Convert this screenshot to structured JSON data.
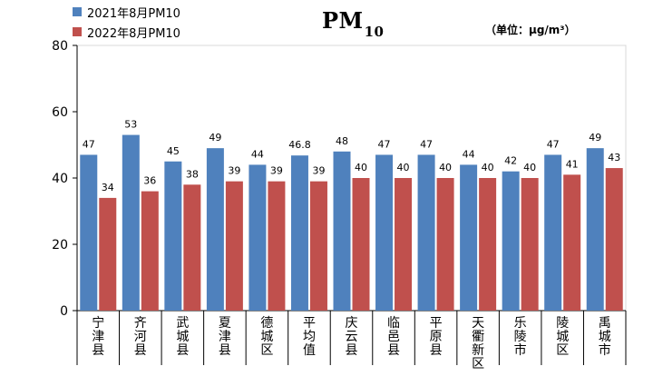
{
  "colors": {
    "series2021": "#4f81bd",
    "series2022": "#c0504d"
  },
  "legend": {
    "s2021": "2021年8月PM10",
    "s2022": "2022年8月PM10"
  },
  "title": {
    "main": "PM",
    "sub": "10"
  },
  "unit": "（单位：μg/m³）",
  "chart_data": {
    "type": "bar",
    "title": "PM10",
    "ylim": [
      0,
      80
    ],
    "yticks": [
      0,
      20,
      40,
      60,
      80
    ],
    "grid": false,
    "legend_position": "top-left",
    "categories": [
      "宁津县",
      "齐河县",
      "武城县",
      "夏津县",
      "德城区",
      "平均值",
      "庆云县",
      "临邑县",
      "平原县",
      "天衢新区",
      "乐陵市",
      "陵城区",
      "禹城市"
    ],
    "series": [
      {
        "name": "2021年8月PM10",
        "values": [
          47,
          53,
          45,
          49,
          44,
          46.8,
          48,
          47,
          47,
          44,
          42,
          47,
          49
        ],
        "labels": [
          "47",
          "53",
          "45",
          "49",
          "44",
          "46.8",
          "48",
          "47",
          "47",
          "44",
          "42",
          "47",
          "49"
        ]
      },
      {
        "name": "2022年8月PM10",
        "values": [
          34,
          36,
          38,
          39,
          39,
          39,
          40,
          40,
          40,
          40,
          40,
          41,
          43
        ],
        "labels": [
          "34",
          "36",
          "38",
          "39",
          "39",
          "39",
          "40",
          "40",
          "40",
          "40",
          "40",
          "41",
          "43"
        ]
      }
    ]
  }
}
